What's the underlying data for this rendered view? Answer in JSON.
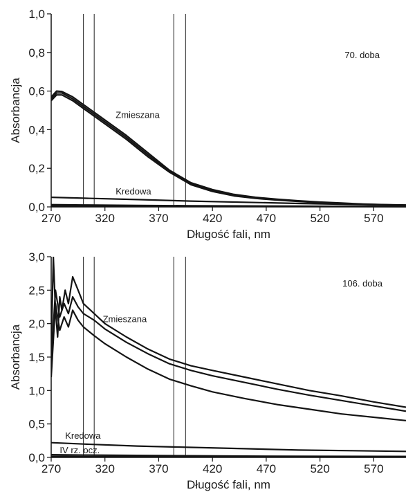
{
  "chart_data": [
    {
      "type": "line",
      "xlabel": "Długość fali, nm",
      "ylabel": "Absorbancja",
      "xlim": [
        270,
        600
      ],
      "ylim": [
        0.0,
        1.0
      ],
      "xticks": [
        "270",
        "320",
        "370",
        "420",
        "470",
        "520",
        "570"
      ],
      "yticks": [
        "0,0",
        "0,2",
        "0,4",
        "0,6",
        "0,8",
        "1,0"
      ],
      "grid": false,
      "annotation": "70. doba",
      "vlines": [
        300,
        310,
        384,
        395
      ],
      "series_labels": [
        {
          "text": "Zmieszana",
          "x": 330,
          "y": 0.46
        },
        {
          "text": "Kredowa",
          "x": 330,
          "y": 0.065
        }
      ],
      "series": [
        {
          "x": [
            270,
            275,
            280,
            290,
            300,
            310,
            320,
            340,
            360,
            380,
            400,
            420,
            440,
            460,
            480,
            500,
            520,
            540,
            560,
            580,
            600
          ],
          "values": [
            0.57,
            0.6,
            0.598,
            0.57,
            0.53,
            0.49,
            0.45,
            0.37,
            0.28,
            0.19,
            0.125,
            0.09,
            0.065,
            0.05,
            0.04,
            0.032,
            0.025,
            0.02,
            0.015,
            0.012,
            0.01
          ]
        },
        {
          "x": [
            270,
            275,
            280,
            290,
            300,
            310,
            320,
            340,
            360,
            380,
            400,
            420,
            440,
            460,
            480,
            500,
            520,
            540,
            560,
            580,
            600
          ],
          "values": [
            0.56,
            0.59,
            0.59,
            0.56,
            0.52,
            0.48,
            0.44,
            0.36,
            0.27,
            0.185,
            0.12,
            0.085,
            0.06,
            0.047,
            0.037,
            0.03,
            0.023,
            0.018,
            0.014,
            0.011,
            0.009
          ]
        },
        {
          "x": [
            270,
            275,
            280,
            290,
            300,
            310,
            320,
            340,
            360,
            380,
            400,
            420,
            440,
            460,
            480,
            500,
            520,
            540,
            560,
            580,
            600
          ],
          "values": [
            0.55,
            0.58,
            0.58,
            0.55,
            0.51,
            0.47,
            0.43,
            0.35,
            0.26,
            0.18,
            0.115,
            0.08,
            0.057,
            0.044,
            0.035,
            0.028,
            0.022,
            0.017,
            0.013,
            0.01,
            0.008
          ]
        },
        {
          "x": [
            270,
            300,
            350,
            400,
            450,
            500,
            550,
            600
          ],
          "values": [
            0.05,
            0.045,
            0.038,
            0.03,
            0.024,
            0.018,
            0.013,
            0.009
          ]
        },
        {
          "x": [
            270,
            300,
            350,
            400,
            450,
            500,
            550,
            600
          ],
          "values": [
            0.012,
            0.01,
            0.008,
            0.006,
            0.005,
            0.004,
            0.003,
            0.003
          ]
        },
        {
          "x": [
            270,
            300,
            350,
            400,
            450,
            500,
            550,
            600
          ],
          "values": [
            0.005,
            0.004,
            0.003,
            0.003,
            0.002,
            0.002,
            0.002,
            0.001
          ]
        }
      ]
    },
    {
      "type": "line",
      "xlabel": "Długość fali, nm",
      "ylabel": "Absorbancja",
      "xlim": [
        270,
        600
      ],
      "ylim": [
        0.0,
        3.0
      ],
      "xticks": [
        "270",
        "320",
        "370",
        "420",
        "470",
        "520",
        "570"
      ],
      "yticks": [
        "0,0",
        "0,5",
        "1,0",
        "1,5",
        "2,0",
        "2,5",
        "3,0"
      ],
      "grid": false,
      "annotation": "106. doba",
      "vlines": [
        300,
        310,
        384,
        395
      ],
      "series_labels": [
        {
          "text": "Zmieszana",
          "x": 318,
          "y": 2.02
        },
        {
          "text": "Kredowa",
          "x": 283,
          "y": 0.28
        },
        {
          "text": "IV rz. ocz.",
          "x": 278,
          "y": 0.06
        }
      ],
      "series": [
        {
          "x": [
            270,
            272,
            274,
            276,
            278,
            280,
            283,
            286,
            290,
            295,
            300,
            310,
            320,
            340,
            360,
            380,
            400,
            420,
            450,
            480,
            510,
            540,
            570,
            600
          ],
          "values": [
            1.6,
            3.0,
            2.2,
            1.8,
            2.4,
            2.2,
            2.5,
            2.3,
            2.7,
            2.5,
            2.3,
            2.15,
            2.0,
            1.8,
            1.62,
            1.47,
            1.37,
            1.3,
            1.2,
            1.1,
            1.0,
            0.92,
            0.83,
            0.75
          ]
        },
        {
          "x": [
            270,
            274,
            278,
            282,
            286,
            290,
            295,
            300,
            310,
            320,
            340,
            360,
            380,
            400,
            420,
            450,
            480,
            510,
            540,
            570,
            600
          ],
          "values": [
            1.4,
            2.5,
            2.1,
            2.3,
            2.15,
            2.4,
            2.25,
            2.15,
            2.05,
            1.92,
            1.72,
            1.55,
            1.4,
            1.3,
            1.22,
            1.12,
            1.02,
            0.93,
            0.85,
            0.77,
            0.69
          ]
        },
        {
          "x": [
            270,
            274,
            278,
            282,
            286,
            290,
            295,
            300,
            310,
            320,
            340,
            360,
            380,
            400,
            420,
            450,
            480,
            510,
            540,
            570,
            600
          ],
          "values": [
            1.2,
            2.3,
            1.9,
            2.1,
            1.95,
            2.2,
            2.05,
            1.95,
            1.82,
            1.7,
            1.5,
            1.32,
            1.17,
            1.07,
            0.98,
            0.88,
            0.79,
            0.72,
            0.65,
            0.6,
            0.55
          ]
        },
        {
          "x": [
            270,
            300,
            350,
            400,
            450,
            500,
            550,
            600
          ],
          "values": [
            0.22,
            0.2,
            0.17,
            0.15,
            0.13,
            0.11,
            0.1,
            0.09
          ]
        },
        {
          "x": [
            270,
            300,
            350,
            400,
            450,
            500,
            550,
            600
          ],
          "values": [
            0.04,
            0.035,
            0.03,
            0.025,
            0.02,
            0.018,
            0.016,
            0.014
          ]
        },
        {
          "x": [
            270,
            300,
            350,
            400,
            450,
            500,
            550,
            600
          ],
          "values": [
            0.015,
            0.012,
            0.01,
            0.008,
            0.007,
            0.006,
            0.005,
            0.005
          ]
        }
      ]
    }
  ]
}
